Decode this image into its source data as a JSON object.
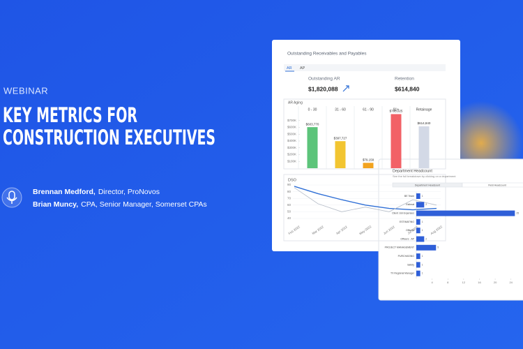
{
  "banner": {
    "eyebrow": "WEBINAR",
    "title_lines": [
      "KEY METRICS FOR",
      "CONSTRUCTION EXECUTIVES"
    ],
    "speakers": [
      {
        "name": "Brennan Medford,",
        "role": "Director, ProNovos"
      },
      {
        "name": "Brian Muncy,",
        "role": "CPA, Senior Manager, Somerset CPAs"
      }
    ]
  },
  "receivables": {
    "title": "Outstanding Receivables and Payables",
    "tabs": [
      "AR",
      "AP"
    ],
    "kpis": [
      {
        "label": "Outstanding AR",
        "value": "$1,820,088"
      },
      {
        "label": "Retention",
        "value": "$614,840"
      }
    ],
    "aging": {
      "type": "bar",
      "title": "AR Aging",
      "categories": [
        "0 - 30",
        "31 - 60",
        "61 - 90",
        "91+",
        "Retainage"
      ],
      "values": [
        603770,
        397727,
        79158,
        795025,
        614840
      ],
      "value_labels": [
        "$603,770",
        "$397,727",
        "$79,158",
        "$795,025",
        "$614,840"
      ],
      "colors": [
        "#5cc47a",
        "#f2c531",
        "#f2a31f",
        "#f26166",
        "#d3d9e6"
      ],
      "ylim": [
        0,
        800000
      ],
      "yticks": [
        {
          "value": 100000,
          "label": "$100K"
        },
        {
          "value": 200000,
          "label": "$200K"
        },
        {
          "value": 300000,
          "label": "$300K"
        },
        {
          "value": 400000,
          "label": "$400K"
        },
        {
          "value": 500000,
          "label": "$500K"
        },
        {
          "value": 600000,
          "label": "$600K"
        },
        {
          "value": 700000,
          "label": "$700K"
        }
      ]
    },
    "dso": {
      "type": "line",
      "title": "DSO",
      "categories": [
        "Feb 2022",
        "Mar 2022",
        "Apr 2022",
        "May 2022",
        "Jun 2022",
        "Jul 2022",
        "Aug 2022"
      ],
      "series": [
        {
          "color": "#2f6fd6",
          "values": [
            88,
            77,
            68,
            60,
            55,
            53,
            55
          ]
        },
        {
          "color": "#b7bec9",
          "values": [
            86,
            62,
            50,
            57,
            50,
            68,
            60
          ]
        }
      ],
      "ylim": [
        40,
        90
      ],
      "yticks": [
        40,
        50,
        60,
        70,
        80,
        90
      ]
    }
  },
  "headcount": {
    "type": "bar",
    "title": "Department Headcount",
    "subtitle": "See the full breakdown by clicking on a department",
    "tabs": [
      "Department Headcount",
      "Field Headcount"
    ],
    "categories": [
      "BE Team",
      "Estimat",
      "Client Job Expenses",
      "ESTIMATING",
      "Officers",
      "Officers - AP",
      "PROJECT MANAGEMENT",
      "PURCHASING",
      "Safety",
      "TX Regional Manager"
    ],
    "values": [
      1,
      2,
      25,
      1,
      1,
      2,
      5,
      1,
      1,
      1
    ],
    "color": "#2f5fd8",
    "xlim": [
      0,
      26
    ],
    "xticks": [
      4,
      8,
      12,
      16,
      20,
      24
    ]
  }
}
